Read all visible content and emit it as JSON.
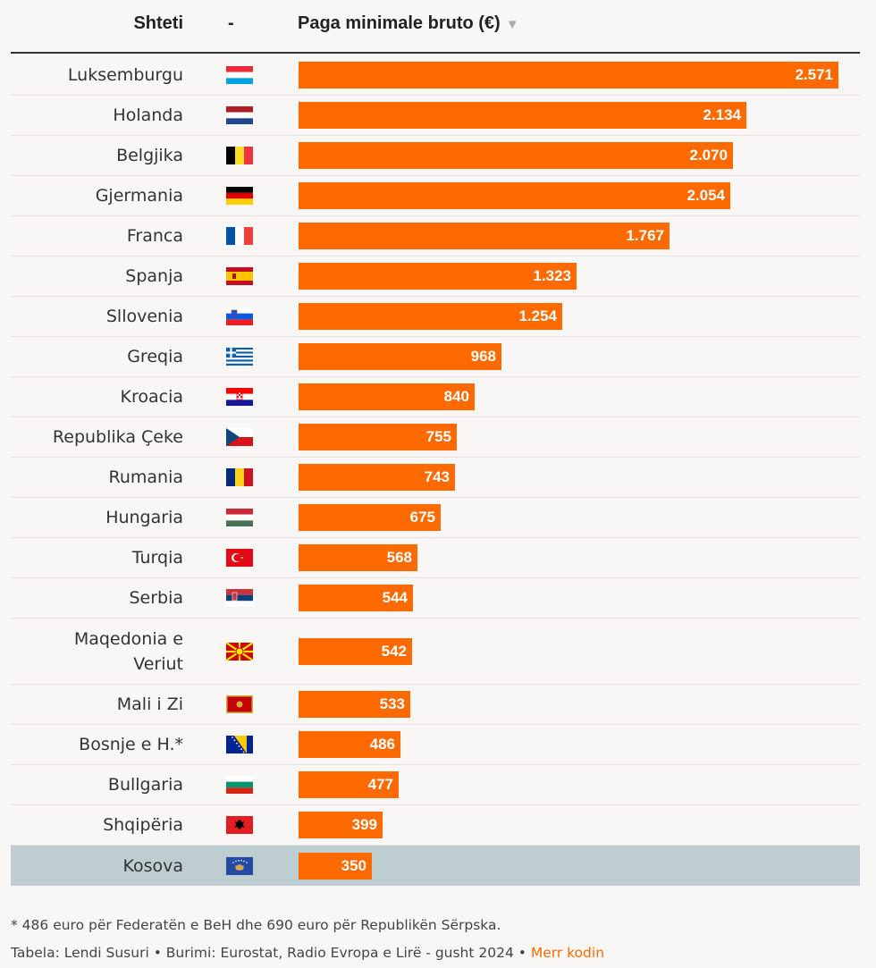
{
  "header": {
    "country_col": "Shteti",
    "flag_col": "-",
    "value_col": "Paga minimale bruto (€)",
    "sort_icon": "▼"
  },
  "chart_data": {
    "type": "bar",
    "orientation": "horizontal",
    "xlabel": "Paga minimale bruto (€)",
    "xlim": [
      0,
      2571
    ],
    "categories": [
      "Luksemburgu",
      "Holanda",
      "Belgjika",
      "Gjermania",
      "Franca",
      "Spanja",
      "Sllovenia",
      "Greqia",
      "Kroacia",
      "Republika Çeke",
      "Rumania",
      "Hungaria",
      "Turqia",
      "Serbia",
      "Maqedonia e Veriut",
      "Mali i Zi",
      "Bosnje e H.*",
      "Bullgaria",
      "Shqipëria",
      "Kosova"
    ],
    "values": [
      2571,
      2134,
      2070,
      2054,
      1767,
      1323,
      1254,
      968,
      840,
      755,
      743,
      675,
      568,
      544,
      542,
      533,
      486,
      477,
      399,
      350
    ],
    "value_labels": [
      "2.571",
      "2.134",
      "2.070",
      "2.054",
      "1.767",
      "1.323",
      "1.254",
      "968",
      "840",
      "755",
      "743",
      "675",
      "568",
      "544",
      "542",
      "533",
      "486",
      "477",
      "399",
      "350"
    ],
    "flags": [
      "luxembourg-flag-icon",
      "netherlands-flag-icon",
      "belgium-flag-icon",
      "germany-flag-icon",
      "france-flag-icon",
      "spain-flag-icon",
      "slovenia-flag-icon",
      "greece-flag-icon",
      "croatia-flag-icon",
      "czechia-flag-icon",
      "romania-flag-icon",
      "hungary-flag-icon",
      "turkey-flag-icon",
      "serbia-flag-icon",
      "north-macedonia-flag-icon",
      "montenegro-flag-icon",
      "bosnia-flag-icon",
      "bulgaria-flag-icon",
      "albania-flag-icon",
      "kosovo-flag-icon"
    ],
    "highlighted": "Kosova",
    "bar_color": "#ff6a00",
    "highlight_color": "#bdcdd0"
  },
  "footer": {
    "footnote": "* 486 euro për Federatën e BeH dhe 690 euro për Republikën Sërpska.",
    "credit": "Tabela: Lendi Susuri  • Burimi: Eurostat, Radio Evropa e Lirë - gusht 2024 • ",
    "link": "Merr kodin"
  }
}
